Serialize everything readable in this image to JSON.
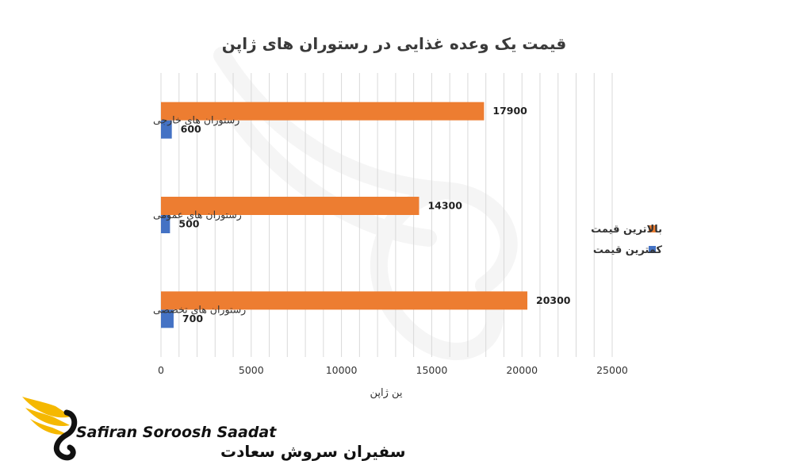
{
  "chart_data": {
    "type": "bar",
    "orientation": "horizontal",
    "title": "قیمت یک وعده غذایی در رستوران های ژاپن",
    "xlabel": "ین ژاپن",
    "ylabel": "",
    "categories": [
      "رستوران های خارجی",
      "رستوران های عمومی",
      "رستوران های تخصصی"
    ],
    "series": [
      {
        "name": "بالاترین قیمت",
        "color": "#ed7d31",
        "values": [
          17900,
          14300,
          20300
        ]
      },
      {
        "name": "کمترین قیمت",
        "color": "#4472c4",
        "values": [
          600,
          500,
          700
        ]
      }
    ],
    "xlim": [
      0,
      25000
    ],
    "x_ticks": [
      0,
      5000,
      10000,
      15000,
      20000,
      25000
    ],
    "grid": true,
    "legend": "right",
    "data_labels": true
  },
  "branding": {
    "logo_text_en": "Safiran Soroosh Saadat",
    "logo_text_fa": "سفیران سروش سعادت",
    "accent_color": "#f5b800",
    "logo_icon": "winged-s-logo-icon"
  }
}
